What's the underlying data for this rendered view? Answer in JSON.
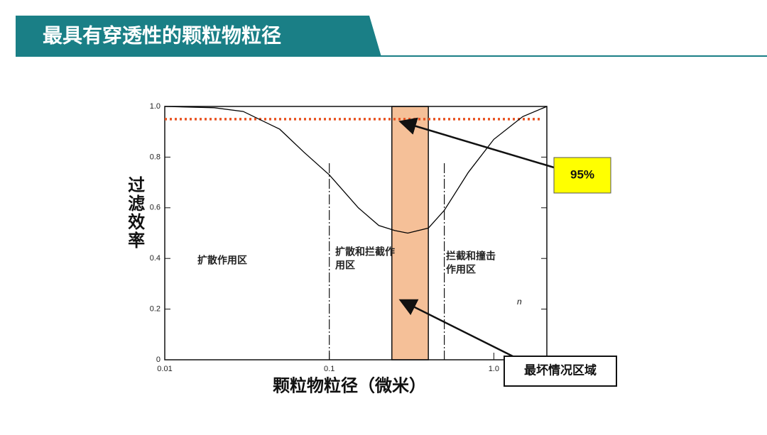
{
  "slide_title": "最具有穿透性的颗粒物粒径",
  "chart_data": {
    "type": "line",
    "x_label": "颗粒物粒径（微米）",
    "y_label": "过滤效率",
    "log_x": true,
    "xlim": [
      0.01,
      2.1
    ],
    "ylim": [
      0,
      1
    ],
    "xticks": [
      0.01,
      0.1,
      {
        "value": 1,
        "label": "1.0"
      }
    ],
    "yticks": [
      0,
      0.2,
      0.4,
      0.6,
      0.8,
      {
        "value": 1,
        "label": "1.0"
      }
    ],
    "x": [
      0.01,
      0.02,
      0.03,
      0.05,
      0.07,
      0.1,
      0.15,
      0.2,
      0.25,
      0.3,
      0.4,
      0.5,
      0.7,
      1,
      1.5,
      2.1
    ],
    "values": [
      1,
      0.995,
      0.98,
      0.91,
      0.82,
      0.73,
      0.6,
      0.53,
      0.51,
      0.5,
      0.52,
      0.59,
      0.74,
      0.87,
      0.96,
      1
    ],
    "color": "#000000",
    "threshold": 0.95,
    "threshold_label": "95%",
    "threshold_color": "#e8501e",
    "band": [
      0.24,
      0.4
    ],
    "band_color": "#f5c098",
    "band_label": "最坏情况区域",
    "dividers": [
      0.1,
      0.5
    ],
    "region_labels": [
      [
        "扩散作用区"
      ],
      [
        "扩散和拦截作",
        "用区"
      ],
      [
        "拦截和撞击",
        "作用区"
      ]
    ],
    "note": "n"
  }
}
